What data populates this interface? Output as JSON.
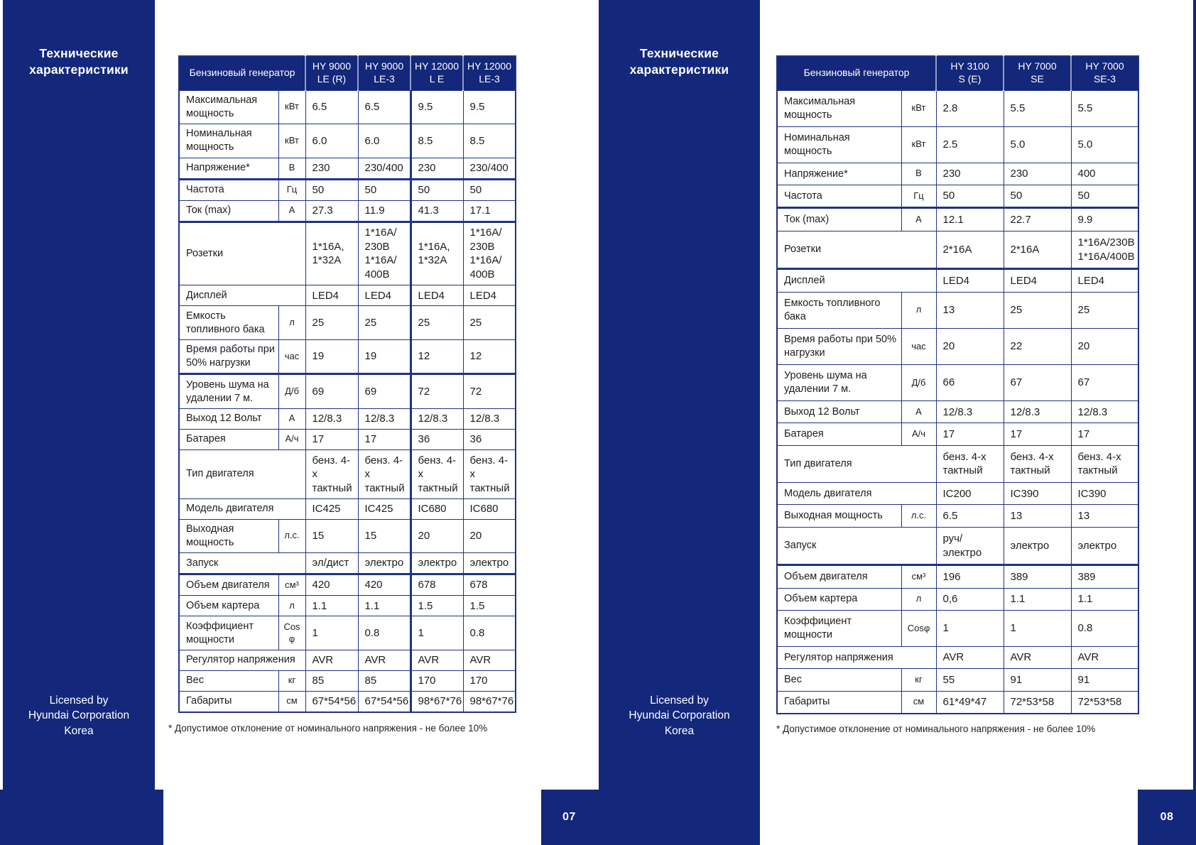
{
  "accent_color": "#13277b",
  "pages": [
    {
      "page_number": "07",
      "sidebar_title": "Технические\nхарактеристики",
      "licensed_by": "Licensed by\nHyundai Corporation\nKorea",
      "footnote": "* Допустимое отклонение от номинального напряжения - не более 10%",
      "table": {
        "header_label": "Бензиновый генератор",
        "models": [
          "HY 9000\nLE (R)",
          "HY 9000\nLE-3",
          "HY 12000\nL E",
          "HY 12000\nLE-3"
        ],
        "divider_before_model_index": 2,
        "rows": [
          {
            "label": "Максимальная мощность",
            "unit": "кВт",
            "values": [
              "6.5",
              "6.5",
              "9.5",
              "9.5"
            ]
          },
          {
            "label": "Номинальная мощность",
            "unit": "кВт",
            "values": [
              "6.0",
              "6.0",
              "8.5",
              "8.5"
            ]
          },
          {
            "label": "Напряжение*",
            "unit": "В",
            "values": [
              "230",
              "230/400",
              "230",
              "230/400"
            ],
            "section_end": true
          },
          {
            "label": "Частота",
            "unit": "Гц",
            "values": [
              "50",
              "50",
              "50",
              "50"
            ]
          },
          {
            "label": "Ток (max)",
            "unit": "А",
            "values": [
              "27.3",
              "11.9",
              "41.3",
              "17.1"
            ],
            "section_end": true
          },
          {
            "label": "Розетки",
            "unit": "",
            "values": [
              "1*16A,\n1*32A",
              "1*16А/\n230В\n1*16А/\n400В",
              "1*16A,\n1*32A",
              "1*16А/\n230В\n1*16А/\n400В"
            ]
          },
          {
            "label": "Дисплей",
            "unit": "",
            "values": [
              "LED4",
              "LED4",
              "LED4",
              "LED4"
            ]
          },
          {
            "label": "Емкость топливного бака",
            "unit": "л",
            "values": [
              "25",
              "25",
              "25",
              "25"
            ]
          },
          {
            "label": "Время работы при 50% нагрузки",
            "unit": "час",
            "values": [
              "19",
              "19",
              "12",
              "12"
            ],
            "section_end": true
          },
          {
            "label": "Уровень шума на удалении 7 м.",
            "unit": "Д/б",
            "values": [
              "69",
              "69",
              "72",
              "72"
            ]
          },
          {
            "label": "Выход 12 Вольт",
            "unit": "А",
            "values": [
              "12/8.3",
              "12/8.3",
              "12/8.3",
              "12/8.3"
            ]
          },
          {
            "label": "Батарея",
            "unit": "А/ч",
            "values": [
              "17",
              "17",
              "36",
              "36"
            ]
          },
          {
            "label": "Тип двигателя",
            "unit": "",
            "values": [
              "бенз. 4-х\nтактный",
              "бенз. 4-х\nтактный",
              "бенз. 4-х\nтактный",
              "бенз. 4-х\nтактный"
            ]
          },
          {
            "label": "Модель двигателя",
            "unit": "",
            "values": [
              "IC425",
              "IC425",
              "IC680",
              "IC680"
            ]
          },
          {
            "label": "Выходная мощность",
            "unit": "л.с.",
            "values": [
              "15",
              "15",
              "20",
              "20"
            ]
          },
          {
            "label": "Запуск",
            "unit": "",
            "values": [
              "эл/дист",
              "электро",
              "электро",
              "электро"
            ],
            "section_end": true
          },
          {
            "label": "Объем двигателя",
            "unit": "см³",
            "values": [
              "420",
              "420",
              "678",
              "678"
            ]
          },
          {
            "label": "Объем картера",
            "unit": "л",
            "values": [
              "1.1",
              "1.1",
              "1.5",
              "1.5"
            ]
          },
          {
            "label": "Коэффициент мощности",
            "unit": "Cos\nφ",
            "values": [
              "1",
              "0.8",
              "1",
              "0.8"
            ]
          },
          {
            "label": "Регулятор напряжения",
            "unit": "",
            "values": [
              "AVR",
              "AVR",
              "AVR",
              "AVR"
            ]
          },
          {
            "label": "Вес",
            "unit": "кг",
            "values": [
              "85",
              "85",
              "170",
              "170"
            ]
          },
          {
            "label": "Габариты",
            "unit": "см",
            "values": [
              "67*54*56",
              "67*54*56",
              "98*67*76",
              "98*67*76"
            ]
          }
        ]
      }
    },
    {
      "page_number": "08",
      "sidebar_title": "Технические\nхарактеристики",
      "licensed_by": "Licensed by\nHyundai Corporation\nKorea",
      "footnote": "* Допустимое отклонение от номинального напряжения - не более 10%",
      "table": {
        "header_label": "Бензиновый генератор",
        "models": [
          "HY 3100\nS (E)",
          "HY 7000\nSE",
          "HY 7000\nSE-3"
        ],
        "divider_before_model_index": null,
        "rows": [
          {
            "label": "Максимальная мощность",
            "unit": "кВт",
            "values": [
              "2.8",
              "5.5",
              "5.5"
            ]
          },
          {
            "label": "Номинальная мощность",
            "unit": "кВт",
            "values": [
              "2.5",
              "5.0",
              "5.0"
            ]
          },
          {
            "label": "Напряжение*",
            "unit": "В",
            "values": [
              "230",
              "230",
              "400"
            ]
          },
          {
            "label": "Частота",
            "unit": "Гц",
            "values": [
              "50",
              "50",
              "50"
            ],
            "section_end": true
          },
          {
            "label": "Ток (max)",
            "unit": "А",
            "values": [
              "12.1",
              "22.7",
              "9.9"
            ]
          },
          {
            "label": "Розетки",
            "unit": "",
            "values": [
              "2*16A",
              "2*16A",
              "1*16А/230В\n1*16А/400В"
            ],
            "section_end": true
          },
          {
            "label": "Дисплей",
            "unit": "",
            "values": [
              "LED4",
              "LED4",
              "LED4"
            ]
          },
          {
            "label": "Емкость топливного бака",
            "unit": "л",
            "values": [
              "13",
              "25",
              "25"
            ]
          },
          {
            "label": "Время работы при 50% нагрузки",
            "unit": "час",
            "values": [
              "20",
              "22",
              "20"
            ]
          },
          {
            "label": "Уровень шума на удалении 7 м.",
            "unit": "Д/б",
            "values": [
              "66",
              "67",
              "67"
            ]
          },
          {
            "label": "Выход 12 Вольт",
            "unit": "А",
            "values": [
              "12/8.3",
              "12/8.3",
              "12/8.3"
            ]
          },
          {
            "label": "Батарея",
            "unit": "А/ч",
            "values": [
              "17",
              "17",
              "17"
            ]
          },
          {
            "label": "Тип двигателя",
            "unit": "",
            "values": [
              "бенз. 4-х\nтактный",
              "бенз. 4-х\nтактный",
              "бенз. 4-х\nтактный"
            ]
          },
          {
            "label": "Модель двигателя",
            "unit": "",
            "values": [
              "IC200",
              "IC390",
              "IC390"
            ]
          },
          {
            "label": "Выходная мощность",
            "unit": "л.с.",
            "values": [
              "6.5",
              "13",
              "13"
            ]
          },
          {
            "label": "Запуск",
            "unit": "",
            "values": [
              "руч/электро",
              "электро",
              "электро"
            ],
            "section_end": true
          },
          {
            "label": "Объем двигателя",
            "unit": "см³",
            "values": [
              "196",
              "389",
              "389"
            ]
          },
          {
            "label": "Объем картера",
            "unit": "л",
            "values": [
              "0,6",
              "1.1",
              "1.1"
            ]
          },
          {
            "label": "Коэффициент мощности",
            "unit": "Cosφ",
            "values": [
              "1",
              "1",
              "0.8"
            ]
          },
          {
            "label": "Регулятор напряжения",
            "unit": "",
            "values": [
              "AVR",
              "AVR",
              "AVR"
            ]
          },
          {
            "label": "Вес",
            "unit": "кг",
            "values": [
              "55",
              "91",
              "91"
            ]
          },
          {
            "label": "Габариты",
            "unit": "см",
            "values": [
              "61*49*47",
              "72*53*58",
              "72*53*58"
            ]
          }
        ]
      }
    }
  ]
}
